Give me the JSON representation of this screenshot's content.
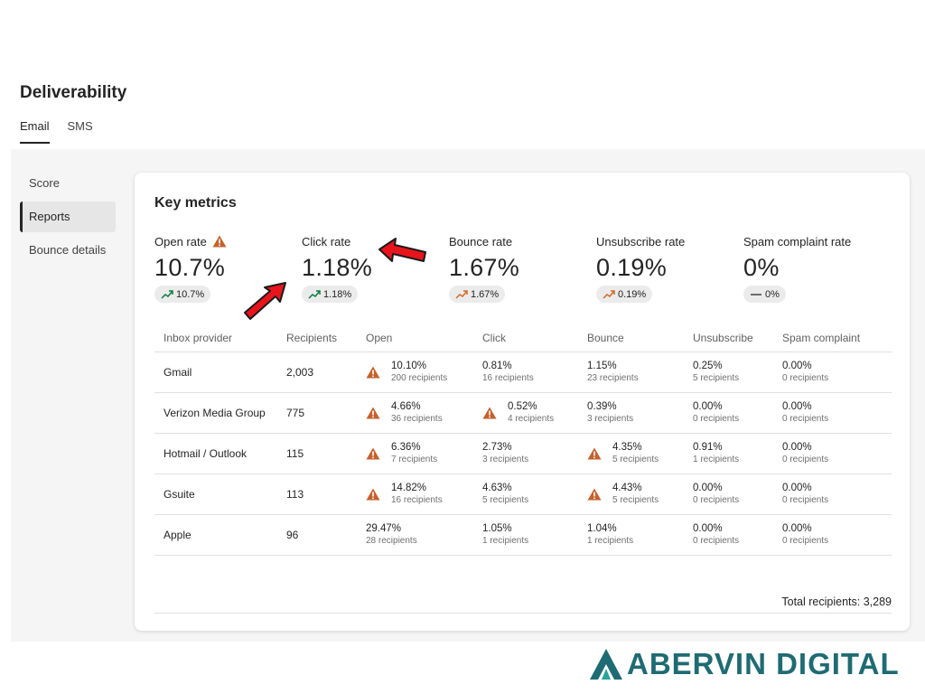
{
  "header": {
    "title": "Deliverability"
  },
  "tabs": [
    {
      "label": "Email"
    },
    {
      "label": "SMS"
    }
  ],
  "sidebar": {
    "items": [
      {
        "label": "Score"
      },
      {
        "label": "Reports"
      },
      {
        "label": "Bounce details"
      }
    ]
  },
  "card": {
    "title": "Key metrics",
    "metrics": [
      {
        "label": "Open rate",
        "value": "10.7%",
        "badge": "10.7%",
        "warning": true,
        "trend": "up-green"
      },
      {
        "label": "Click rate",
        "value": "1.18%",
        "badge": "1.18%",
        "warning": false,
        "trend": "up-green"
      },
      {
        "label": "Bounce rate",
        "value": "1.67%",
        "badge": "1.67%",
        "warning": false,
        "trend": "up-orange"
      },
      {
        "label": "Unsubscribe rate",
        "value": "0.19%",
        "badge": "0.19%",
        "warning": false,
        "trend": "up-orange"
      },
      {
        "label": "Spam complaint rate",
        "value": "0%",
        "badge": "0%",
        "warning": false,
        "trend": "flat"
      }
    ],
    "table": {
      "headers": [
        "Inbox provider",
        "Recipients",
        "Open",
        "Click",
        "Bounce",
        "Unsubscribe",
        "Spam complaint"
      ],
      "rows": [
        {
          "provider": "Gmail",
          "recipients": "2,003",
          "open": {
            "rate": "10.10%",
            "count": "200 recipients"
          },
          "click": {
            "rate": "0.81%",
            "count": "16 recipients"
          },
          "bounce": {
            "rate": "1.15%",
            "count": "23 recipients"
          },
          "unsubscribe": {
            "rate": "0.25%",
            "count": "5 recipients"
          },
          "spam": {
            "rate": "0.00%",
            "count": "0 recipients"
          }
        },
        {
          "provider": "Verizon Media Group",
          "recipients": "775",
          "open": {
            "rate": "4.66%",
            "count": "36 recipients"
          },
          "click": {
            "rate": "0.52%",
            "count": "4 recipients"
          },
          "bounce": {
            "rate": "0.39%",
            "count": "3 recipients"
          },
          "unsubscribe": {
            "rate": "0.00%",
            "count": "0 recipients"
          },
          "spam": {
            "rate": "0.00%",
            "count": "0 recipients"
          }
        },
        {
          "provider": "Hotmail / Outlook",
          "recipients": "115",
          "open": {
            "rate": "6.36%",
            "count": "7 recipients"
          },
          "click": {
            "rate": "2.73%",
            "count": "3 recipients"
          },
          "bounce": {
            "rate": "4.35%",
            "count": "5 recipients"
          },
          "unsubscribe": {
            "rate": "0.91%",
            "count": "1 recipients"
          },
          "spam": {
            "rate": "0.00%",
            "count": "0 recipients"
          }
        },
        {
          "provider": "Gsuite",
          "recipients": "113",
          "open": {
            "rate": "14.82%",
            "count": "16 recipients"
          },
          "click": {
            "rate": "4.63%",
            "count": "5 recipients"
          },
          "bounce": {
            "rate": "4.43%",
            "count": "5 recipients"
          },
          "unsubscribe": {
            "rate": "0.00%",
            "count": "0 recipients"
          },
          "spam": {
            "rate": "0.00%",
            "count": "0 recipients"
          }
        },
        {
          "provider": "Apple",
          "recipients": "96",
          "open": {
            "rate": "29.47%",
            "count": "28 recipients"
          },
          "click": {
            "rate": "1.05%",
            "count": "1 recipients"
          },
          "bounce": {
            "rate": "1.04%",
            "count": "1 recipients"
          },
          "unsubscribe": {
            "rate": "0.00%",
            "count": "0 recipients"
          },
          "spam": {
            "rate": "0.00%",
            "count": "0 recipients"
          }
        }
      ]
    },
    "total_label": "Total recipients:",
    "total_value": "3,289"
  },
  "branding": {
    "name": "ABERVIN DIGITAL"
  },
  "colors": {
    "warning": "#c4622d",
    "trend_green": "#107c41",
    "trend_orange": "#d06b2b",
    "annotation_arrow": "#e8141c",
    "brand": "#1f6b73"
  }
}
